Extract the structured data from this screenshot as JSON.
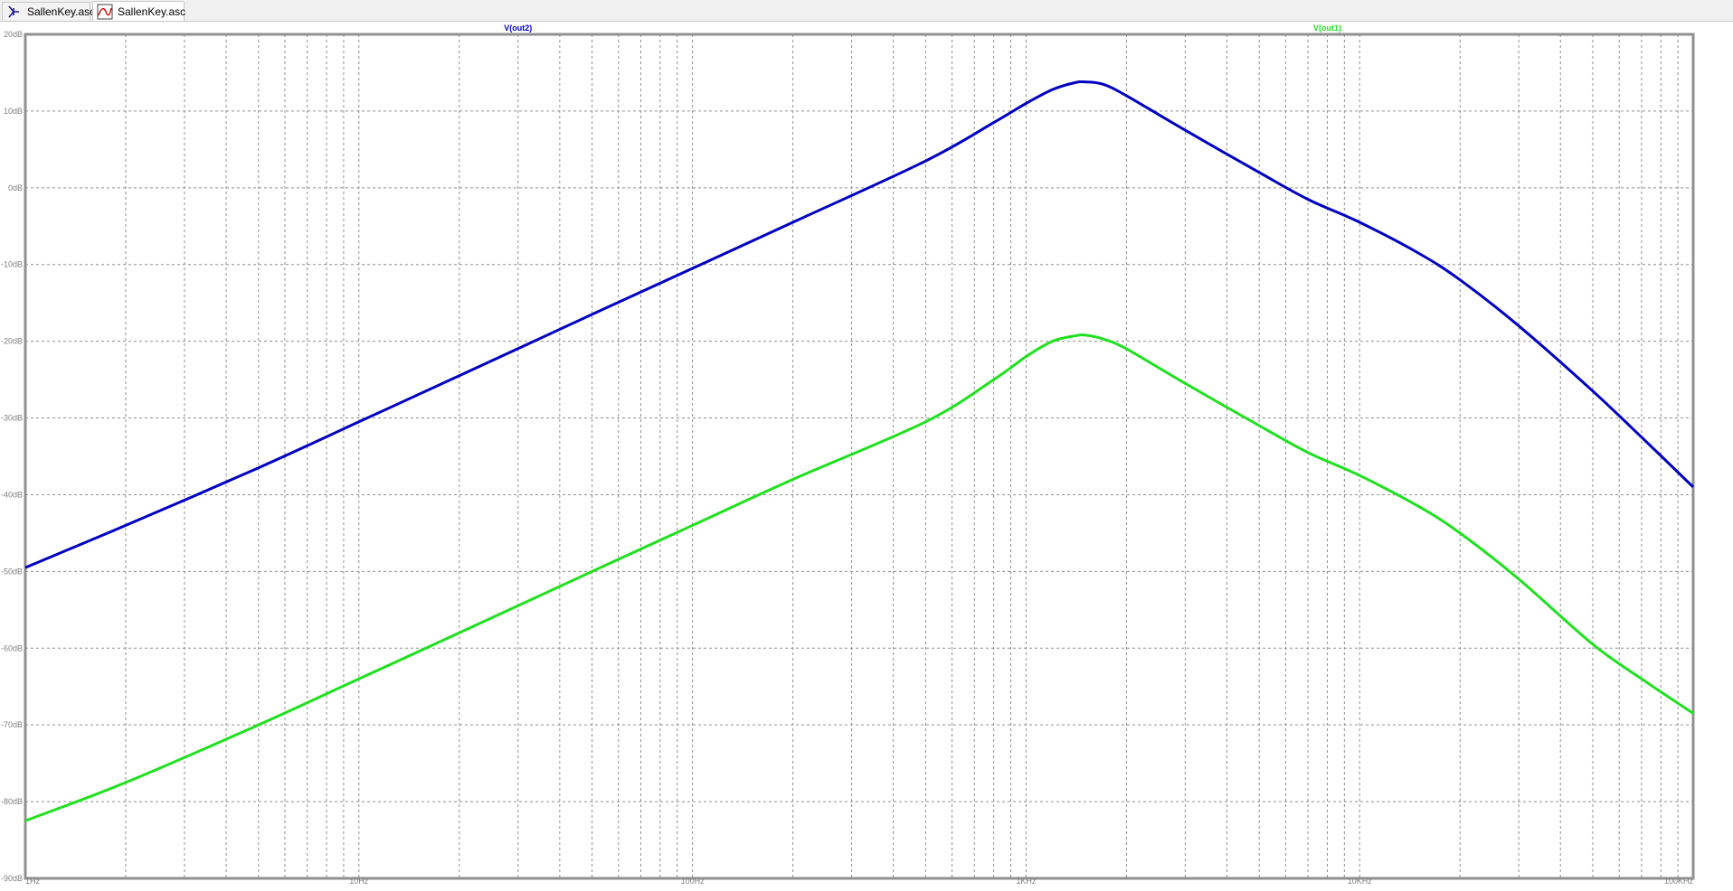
{
  "tabs": [
    {
      "label": "SallenKey.asc",
      "icon": "schematic-icon",
      "active": false
    },
    {
      "label": "SallenKey.asc",
      "icon": "waveform-icon",
      "active": true
    }
  ],
  "chart_data": {
    "type": "line",
    "xscale": "log",
    "xlim": [
      1,
      100000
    ],
    "ylim": [
      -90,
      20
    ],
    "grid": true,
    "xticks": [
      {
        "value": 1,
        "label": "1Hz"
      },
      {
        "value": 10,
        "label": "10Hz"
      },
      {
        "value": 100,
        "label": "100Hz"
      },
      {
        "value": 1000,
        "label": "1KHz"
      },
      {
        "value": 10000,
        "label": "10KHz"
      },
      {
        "value": 100000,
        "label": "100KHz"
      }
    ],
    "yticks": [
      {
        "value": 20,
        "label": "20dB"
      },
      {
        "value": 10,
        "label": "10dB"
      },
      {
        "value": 0,
        "label": "0dB"
      },
      {
        "value": -10,
        "label": "-10dB"
      },
      {
        "value": -20,
        "label": "-20dB"
      },
      {
        "value": -30,
        "label": "-30dB"
      },
      {
        "value": -40,
        "label": "-40dB"
      },
      {
        "value": -50,
        "label": "-50dB"
      },
      {
        "value": -60,
        "label": "-60dB"
      },
      {
        "value": -70,
        "label": "-70dB"
      },
      {
        "value": -80,
        "label": "-80dB"
      },
      {
        "value": -90,
        "label": "-90dB"
      }
    ],
    "series": [
      {
        "name": "V(out2)",
        "color": "#0000c0",
        "x": [
          1,
          2,
          5,
          10,
          20,
          50,
          100,
          200,
          500,
          800,
          1000,
          1200,
          1400,
          1500,
          1700,
          2000,
          3000,
          5000,
          7000,
          10000,
          15000,
          20000,
          30000,
          50000,
          70000,
          100000
        ],
        "y": [
          -49.5,
          -44.0,
          -36.5,
          -30.5,
          -24.5,
          -16.5,
          -10.5,
          -4.5,
          3.5,
          8.5,
          11.0,
          12.8,
          13.7,
          13.8,
          13.5,
          12.0,
          7.5,
          2.0,
          -1.5,
          -4.5,
          -8.5,
          -12.0,
          -18.0,
          -26.5,
          -32.5,
          -39.0
        ]
      },
      {
        "name": "V(out1)",
        "color": "#20e020",
        "x": [
          1,
          2,
          5,
          10,
          20,
          50,
          100,
          200,
          500,
          800,
          1000,
          1200,
          1400,
          1500,
          1700,
          2000,
          3000,
          5000,
          7000,
          10000,
          15000,
          20000,
          30000,
          50000,
          70000,
          100000
        ],
        "y": [
          -82.5,
          -77.5,
          -70.0,
          -64.0,
          -58.0,
          -50.0,
          -44.0,
          -38.0,
          -30.5,
          -25.0,
          -22.0,
          -20.0,
          -19.3,
          -19.2,
          -19.7,
          -21.0,
          -25.5,
          -31.0,
          -34.5,
          -37.5,
          -41.5,
          -45.0,
          -51.0,
          -59.5,
          -64.0,
          -68.5
        ]
      }
    ],
    "legend": [
      {
        "label": "V(out2)",
        "color": "#0000c0",
        "at_x": 30
      },
      {
        "label": "V(out1)",
        "color": "#20e020",
        "at_x": 8000
      }
    ]
  }
}
